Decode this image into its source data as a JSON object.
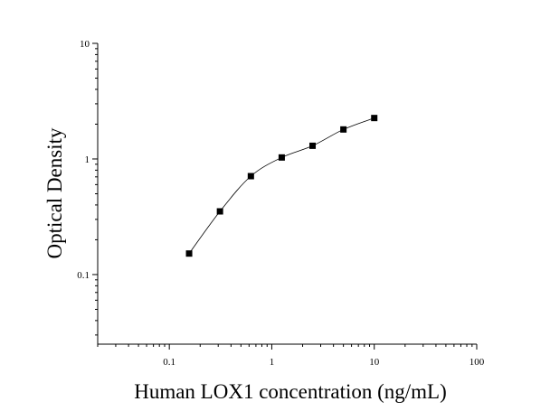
{
  "chart_data": {
    "type": "scatter",
    "title": "",
    "xlabel": "Human LOX1 concentration (ng/mL)",
    "ylabel": "Optical Density",
    "x_scale": "log",
    "y_scale": "log",
    "xlim": [
      0.02,
      100
    ],
    "ylim": [
      0.025,
      10
    ],
    "x_ticks": [
      {
        "value": 0.1,
        "label": "0.1"
      },
      {
        "value": 1,
        "label": "1"
      },
      {
        "value": 10,
        "label": "10"
      },
      {
        "value": 100,
        "label": "100"
      }
    ],
    "y_ticks": [
      {
        "value": 0.1,
        "label": "0.1"
      },
      {
        "value": 1,
        "label": "1"
      },
      {
        "value": 10,
        "label": "10"
      }
    ],
    "grid": false,
    "legend": "none",
    "points": {
      "x": [
        0.156,
        0.312,
        0.625,
        1.25,
        2.5,
        5,
        10
      ],
      "y": [
        0.152,
        0.352,
        0.71,
        1.03,
        1.3,
        1.8,
        2.26
      ]
    },
    "fit_curve": true,
    "colors": {
      "marker": "#000000",
      "curve": "#000000",
      "axis": "#000000"
    }
  }
}
